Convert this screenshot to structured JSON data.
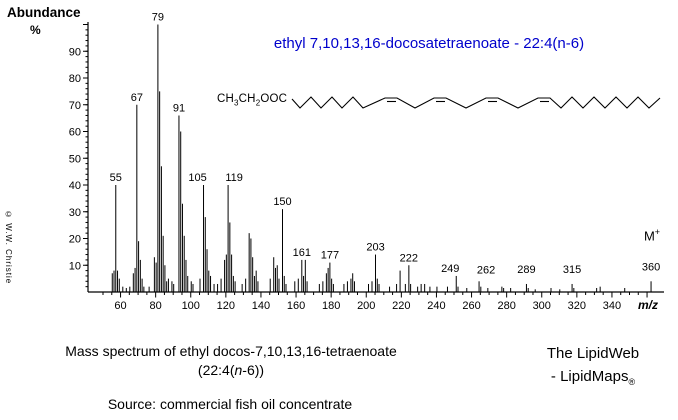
{
  "title": {
    "text": "ethyl 7,10,13,16-docosatetraenoate - 22:4(n-6)",
    "color": "#0000CC"
  },
  "y_axis": {
    "title": "Abundance",
    "unit": "%",
    "ticks": [
      10,
      20,
      30,
      40,
      50,
      60,
      70,
      80,
      90
    ],
    "max": 100
  },
  "x_axis": {
    "label": "m/z",
    "ticks": [
      60,
      80,
      100,
      120,
      140,
      160,
      180,
      200,
      220,
      240,
      260,
      280,
      300,
      320,
      340
    ],
    "range": [
      50,
      365
    ]
  },
  "watermark": "© W.W. Christie",
  "molecule": {
    "formula": [
      {
        "t": "CH"
      },
      {
        "t": "3",
        "sub": true
      },
      {
        "t": "CH"
      },
      {
        "t": "2",
        "sub": true
      },
      {
        "t": "OOC"
      }
    ]
  },
  "molecular_ion": {
    "parts": [
      {
        "t": "M"
      },
      {
        "t": "+",
        "sup": true
      }
    ]
  },
  "captions": {
    "line1": "Mass spectrum of ethyl docos-7,10,13,16-tetraenoate",
    "line2_parts": [
      {
        "t": "(22:4("
      },
      {
        "t": "n",
        "i": true
      },
      {
        "t": "-6))"
      }
    ],
    "lipidweb1": "The LipidWeb",
    "lipidweb2_parts": [
      {
        "t": "- LipidMaps"
      },
      {
        "t": "®",
        "small": true
      }
    ],
    "source": "Source: commercial fish oil concentrate"
  },
  "chart_data": {
    "type": "bar",
    "variant": "mass-spectrum-sticks",
    "title": "ethyl 7,10,13,16-docosatetraenoate - 22:4(n-6)",
    "xlabel": "m/z",
    "ylabel": "Abundance %",
    "xlim": [
      45,
      368
    ],
    "ylim": [
      0,
      100
    ],
    "grid": false,
    "points": [
      [
        53,
        7
      ],
      [
        54,
        8
      ],
      [
        55,
        40
      ],
      [
        56,
        8
      ],
      [
        57,
        5
      ],
      [
        59,
        2
      ],
      [
        61,
        1.5
      ],
      [
        63,
        2
      ],
      [
        65,
        7
      ],
      [
        66,
        9
      ],
      [
        67,
        70
      ],
      [
        68,
        19
      ],
      [
        69,
        12
      ],
      [
        70,
        5
      ],
      [
        71,
        2
      ],
      [
        74,
        2
      ],
      [
        77,
        13
      ],
      [
        78,
        11
      ],
      [
        79,
        100
      ],
      [
        80,
        75
      ],
      [
        81,
        47
      ],
      [
        82,
        21
      ],
      [
        83,
        10
      ],
      [
        84,
        4
      ],
      [
        85,
        5
      ],
      [
        87,
        4
      ],
      [
        88,
        3
      ],
      [
        91,
        66
      ],
      [
        92,
        60
      ],
      [
        93,
        33
      ],
      [
        94,
        21
      ],
      [
        95,
        12
      ],
      [
        96,
        6
      ],
      [
        98,
        4
      ],
      [
        99,
        3
      ],
      [
        103,
        5
      ],
      [
        105,
        40
      ],
      [
        106,
        28
      ],
      [
        107,
        16
      ],
      [
        108,
        8
      ],
      [
        109,
        6
      ],
      [
        111,
        3
      ],
      [
        113,
        3
      ],
      [
        115,
        5
      ],
      [
        117,
        12
      ],
      [
        118,
        14
      ],
      [
        119,
        40
      ],
      [
        120,
        26
      ],
      [
        121,
        14
      ],
      [
        122,
        6
      ],
      [
        123,
        4
      ],
      [
        127,
        3
      ],
      [
        129,
        5
      ],
      [
        131,
        22
      ],
      [
        132,
        20
      ],
      [
        133,
        13
      ],
      [
        134,
        6
      ],
      [
        135,
        8
      ],
      [
        136,
        4
      ],
      [
        143,
        5
      ],
      [
        145,
        13
      ],
      [
        146,
        9
      ],
      [
        147,
        10
      ],
      [
        148,
        5
      ],
      [
        150,
        31
      ],
      [
        151,
        6
      ],
      [
        152,
        3
      ],
      [
        157,
        4
      ],
      [
        159,
        5
      ],
      [
        161,
        12
      ],
      [
        162,
        6
      ],
      [
        163,
        12
      ],
      [
        164,
        4
      ],
      [
        171,
        3
      ],
      [
        173,
        4
      ],
      [
        175,
        7
      ],
      [
        176,
        9
      ],
      [
        177,
        11
      ],
      [
        178,
        5
      ],
      [
        179,
        3
      ],
      [
        185,
        3
      ],
      [
        187,
        4
      ],
      [
        189,
        5
      ],
      [
        190,
        7
      ],
      [
        191,
        4
      ],
      [
        199,
        3
      ],
      [
        201,
        4
      ],
      [
        203,
        14
      ],
      [
        204,
        5
      ],
      [
        205,
        3
      ],
      [
        211,
        2
      ],
      [
        215,
        3
      ],
      [
        217,
        8
      ],
      [
        220,
        3
      ],
      [
        222,
        10
      ],
      [
        223,
        3
      ],
      [
        227,
        2
      ],
      [
        229,
        3
      ],
      [
        231,
        3
      ],
      [
        234,
        2
      ],
      [
        238,
        2
      ],
      [
        244,
        2
      ],
      [
        249,
        6
      ],
      [
        250,
        2
      ],
      [
        255,
        1.5
      ],
      [
        262,
        4
      ],
      [
        263,
        2
      ],
      [
        267,
        1.5
      ],
      [
        275,
        2
      ],
      [
        276,
        1.5
      ],
      [
        280,
        1.5
      ],
      [
        289,
        3
      ],
      [
        290,
        1.5
      ],
      [
        294,
        1
      ],
      [
        303,
        1.5
      ],
      [
        308,
        1
      ],
      [
        315,
        3
      ],
      [
        316,
        1.5
      ],
      [
        329,
        1.5
      ],
      [
        331,
        2
      ],
      [
        345,
        1.5
      ],
      [
        360,
        4
      ]
    ],
    "peak_labels": [
      {
        "mz": 55,
        "text": "55"
      },
      {
        "mz": 67,
        "text": "67"
      },
      {
        "mz": 79,
        "text": "79"
      },
      {
        "mz": 91,
        "text": "91"
      },
      {
        "mz": 105,
        "text": "105",
        "dx": -6
      },
      {
        "mz": 119,
        "text": "119",
        "dx": 6
      },
      {
        "mz": 150,
        "text": "150"
      },
      {
        "mz": 161,
        "text": "161"
      },
      {
        "mz": 177,
        "text": "177"
      },
      {
        "mz": 203,
        "text": "203"
      },
      {
        "mz": 222,
        "text": "222"
      },
      {
        "mz": 249,
        "text": "249",
        "dx": -6
      },
      {
        "mz": 262,
        "text": "262",
        "dx": 7,
        "dy": -4
      },
      {
        "mz": 289,
        "text": "289",
        "dy": -7
      },
      {
        "mz": 315,
        "text": "315",
        "dy": -7
      },
      {
        "mz": 360,
        "text": "360",
        "dy": -7
      }
    ],
    "molecular_ion_mz": 360
  }
}
